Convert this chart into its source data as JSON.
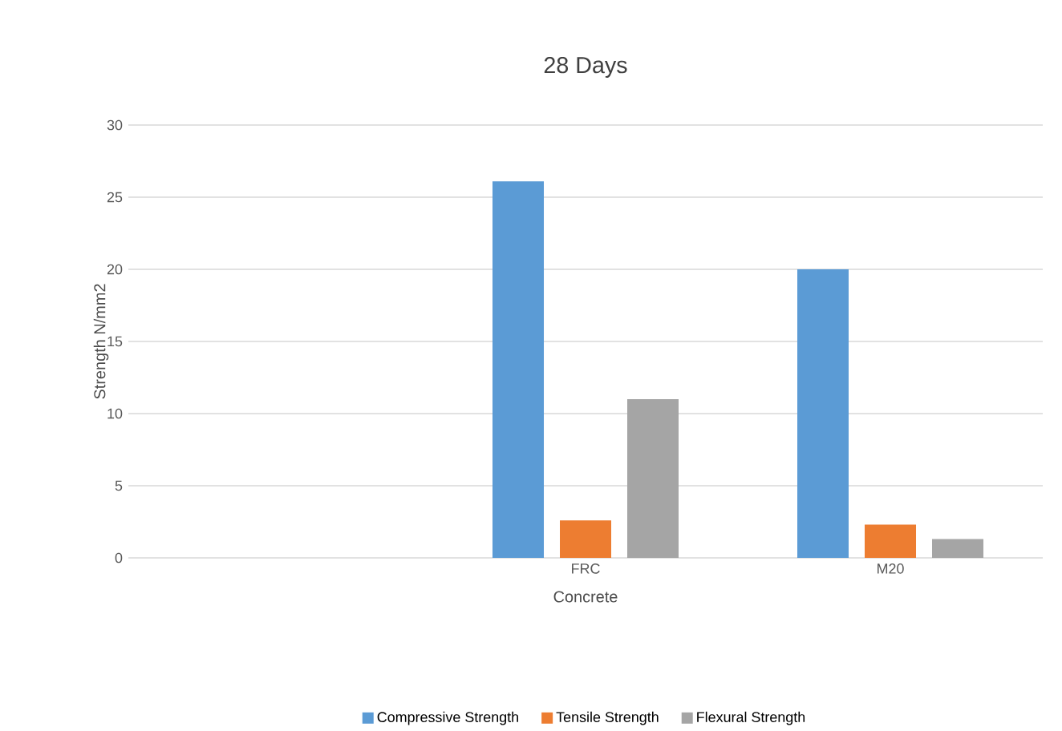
{
  "chart_data": {
    "type": "bar",
    "title": "28 Days",
    "xlabel": "Concrete",
    "ylabel": "Strength N/mm2",
    "categories": [
      null,
      "FRC",
      "M20"
    ],
    "series": [
      {
        "name": "Compressive Strength",
        "color": "#5b9bd5",
        "values": [
          null,
          26.1,
          20.0
        ]
      },
      {
        "name": "Tensile Strength",
        "color": "#ed7d31",
        "values": [
          null,
          2.6,
          2.3
        ]
      },
      {
        "name": "Flexural Strength",
        "color": "#a5a5a5",
        "values": [
          null,
          11.0,
          1.3
        ]
      }
    ],
    "ylim": [
      0,
      30
    ],
    "yticks": [
      0,
      5,
      10,
      15,
      20,
      25,
      30
    ],
    "grid": "y",
    "legend": "bottom"
  }
}
